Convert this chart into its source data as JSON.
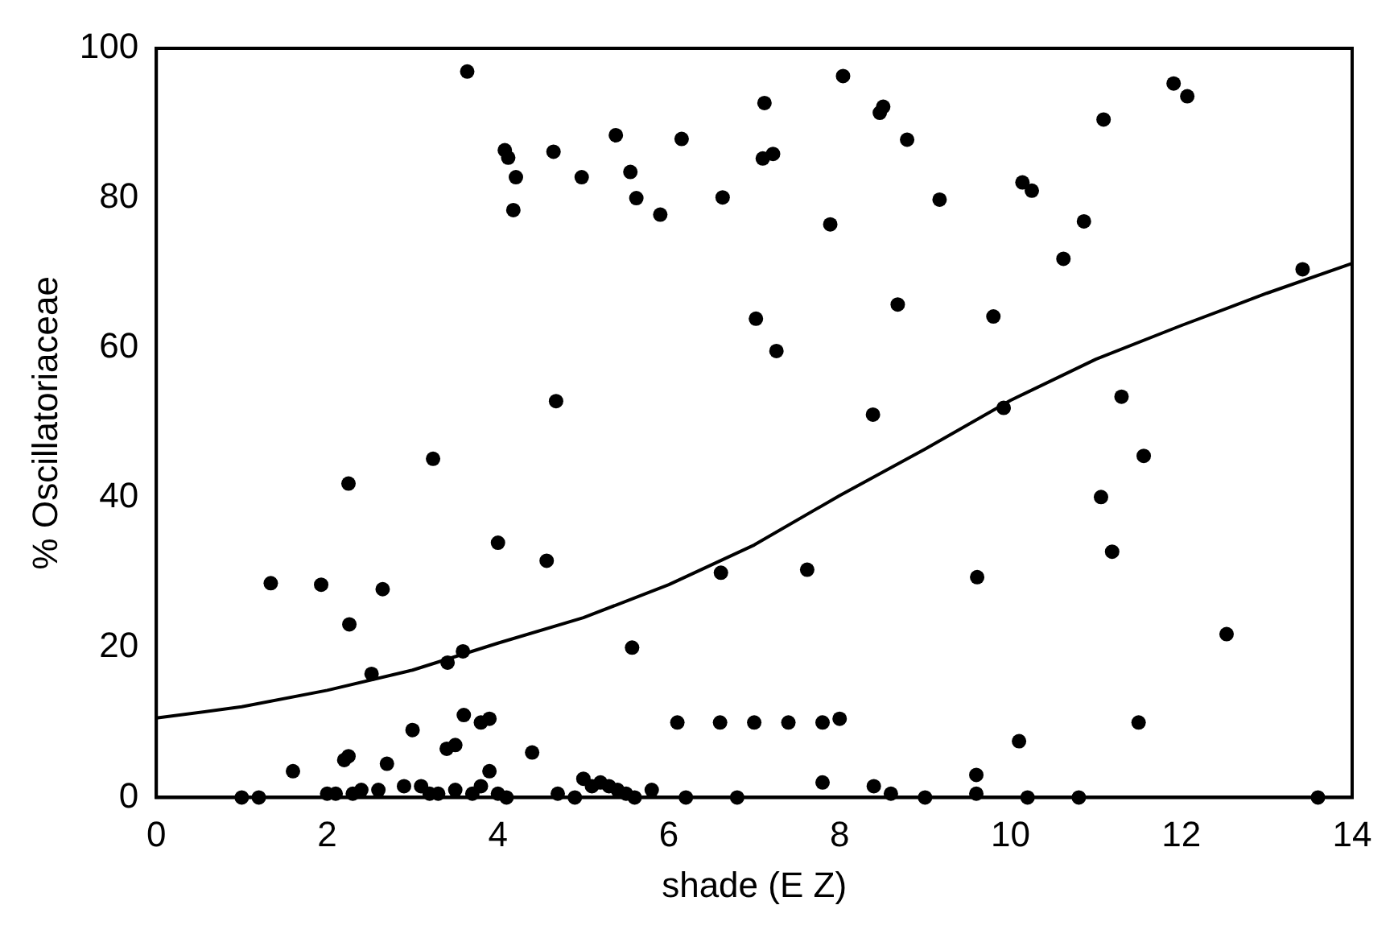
{
  "chart_data": {
    "type": "scatter",
    "xlabel": "shade (E Z)",
    "ylabel": "% Oscillatoriaceae",
    "xlim": [
      0,
      14
    ],
    "ylim": [
      0,
      100
    ],
    "xticks": [
      0,
      2,
      4,
      6,
      8,
      10,
      12,
      14
    ],
    "yticks": [
      0,
      20,
      40,
      60,
      80,
      100
    ],
    "grid": false,
    "legend": false,
    "marker": "circle",
    "series": [
      {
        "type": "scatter",
        "color": "#000000",
        "x": [
          3.64,
          4.08,
          4.12,
          4.21,
          4.18,
          4.65,
          4.98,
          5.38,
          5.55,
          5.62,
          5.9,
          6.15,
          6.63,
          7.12,
          7.1,
          7.22,
          7.02,
          7.26,
          4.68,
          3.24,
          2.25,
          8.04,
          8.51,
          8.47,
          8.79,
          9.17,
          10.14,
          10.25,
          11.09,
          11.91,
          12.07,
          7.89,
          10.86,
          10.62,
          13.42,
          8.68,
          9.8,
          8.39,
          9.92,
          11.3,
          11.56,
          11.06,
          1.34,
          1.93,
          2.26,
          2.65,
          2.52,
          3.41,
          3.59,
          4.0,
          4.57,
          5.57,
          6.61,
          11.19,
          7.62,
          9.61,
          12.53,
          6.1,
          6.6,
          7.0,
          7.4,
          7.8,
          8.0,
          10.1,
          11.5,
          9.6,
          3.6,
          3.8,
          3.9,
          3.5,
          3.4,
          3.0,
          4.4,
          2.2,
          2.25,
          2.7,
          1.6,
          3.9,
          1.0,
          1.2,
          2.0,
          2.1,
          2.3,
          2.4,
          2.6,
          2.9,
          3.1,
          3.2,
          3.3,
          3.5,
          3.7,
          3.8,
          4.0,
          4.1,
          4.7,
          4.9,
          5.0,
          5.1,
          5.2,
          5.3,
          5.4,
          5.5,
          5.6,
          5.8,
          6.2,
          6.8,
          7.8,
          8.4,
          8.6,
          9.0,
          9.6,
          10.2,
          10.8,
          13.6
        ],
        "values": [
          96.9,
          86.4,
          85.4,
          82.8,
          78.4,
          86.2,
          82.8,
          88.4,
          83.5,
          80.0,
          77.8,
          87.9,
          80.1,
          92.7,
          85.3,
          85.9,
          63.9,
          59.6,
          52.9,
          45.2,
          41.9,
          96.3,
          92.2,
          91.4,
          87.8,
          79.8,
          82.1,
          81.0,
          90.5,
          95.3,
          93.6,
          76.5,
          76.9,
          71.9,
          70.5,
          65.8,
          64.2,
          51.1,
          52.0,
          53.5,
          45.6,
          40.1,
          28.6,
          28.4,
          23.1,
          27.8,
          16.5,
          18.0,
          19.5,
          34.0,
          31.6,
          20.0,
          30.0,
          32.8,
          30.4,
          29.4,
          21.8,
          10,
          10,
          10,
          10,
          10,
          10.5,
          7.5,
          10,
          3,
          11,
          10,
          10.5,
          7,
          6.5,
          9,
          6,
          5,
          5.5,
          4.5,
          3.5,
          3.5,
          0,
          0,
          0.5,
          0.5,
          0.5,
          1,
          1,
          1.5,
          1.5,
          0.5,
          0.5,
          1,
          0.5,
          1.5,
          0.5,
          0,
          0.5,
          0,
          2.5,
          1.5,
          2,
          1.5,
          1,
          0.5,
          0,
          1,
          0,
          0,
          2,
          1.5,
          0.5,
          0,
          0.5,
          0,
          0,
          0
        ]
      },
      {
        "type": "line",
        "color": "#000000",
        "marker": "none",
        "line_style": "solid",
        "x": [
          0,
          1,
          2,
          3,
          4,
          5,
          6,
          7,
          8,
          9,
          10,
          11,
          12,
          13,
          14
        ],
        "values": [
          10.6,
          12.1,
          14.3,
          17.0,
          20.6,
          24.0,
          28.4,
          33.7,
          40.3,
          46.5,
          53,
          58.5,
          63,
          67.3,
          71.3
        ]
      }
    ]
  }
}
